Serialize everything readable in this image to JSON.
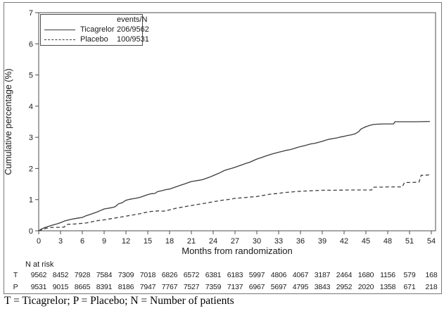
{
  "figure": {
    "y_axis_title": "Cumulative percentage (%)",
    "x_axis_title": "Months from randomization",
    "legend": {
      "header": "events/N",
      "rows": [
        {
          "name": "Ticagrelor",
          "events_n": "206/9562",
          "line": "solid"
        },
        {
          "name": "Placebo",
          "events_n": "100/9531",
          "line": "dashed"
        }
      ]
    },
    "risk_table": {
      "title": "N at risk",
      "rows": [
        {
          "label": "T",
          "counts": [
            9562,
            8452,
            7928,
            7584,
            7309,
            7018,
            6826,
            6572,
            6381,
            6183,
            5997,
            4806,
            4067,
            3187,
            2464,
            1680,
            1156,
            579,
            168
          ]
        },
        {
          "label": "P",
          "counts": [
            9531,
            9015,
            8665,
            8391,
            8186,
            7947,
            7767,
            7527,
            7359,
            7137,
            6967,
            5697,
            4795,
            3843,
            2952,
            2020,
            1358,
            671,
            218
          ]
        }
      ]
    },
    "footnote": "T = Ticagrelor; P = Placebo; N = Number of patients"
  },
  "chart_data": {
    "type": "line",
    "subtype": "kaplan-meier-cumulative-incidence",
    "title": "",
    "xlabel": "Months from randomization",
    "ylabel": "Cumulative percentage (%)",
    "xlim": [
      0,
      54
    ],
    "ylim": [
      0,
      7
    ],
    "xticks": [
      0,
      3,
      6,
      9,
      12,
      15,
      18,
      21,
      24,
      27,
      30,
      33,
      36,
      39,
      42,
      45,
      48,
      51,
      54
    ],
    "yticks": [
      0,
      1,
      2,
      3,
      4,
      5,
      6,
      7
    ],
    "grid": false,
    "legend_position": "top-left",
    "series": [
      {
        "name": "Ticagrelor",
        "events_n": "206/9562",
        "line_style": "solid",
        "color": "#3c3c3c",
        "points": [
          [
            0,
            0
          ],
          [
            0.4,
            0.06
          ],
          [
            0.8,
            0.1
          ],
          [
            1.2,
            0.13
          ],
          [
            1.6,
            0.16
          ],
          [
            2,
            0.19
          ],
          [
            2.5,
            0.22
          ],
          [
            3,
            0.26
          ],
          [
            3.5,
            0.31
          ],
          [
            4,
            0.34
          ],
          [
            4.5,
            0.37
          ],
          [
            5,
            0.39
          ],
          [
            5.5,
            0.41
          ],
          [
            6,
            0.43
          ],
          [
            6.5,
            0.48
          ],
          [
            7,
            0.52
          ],
          [
            7.5,
            0.56
          ],
          [
            8,
            0.6
          ],
          [
            8.5,
            0.65
          ],
          [
            9,
            0.7
          ],
          [
            9.5,
            0.72
          ],
          [
            10,
            0.74
          ],
          [
            10.5,
            0.77
          ],
          [
            10.8,
            0.83
          ],
          [
            11,
            0.87
          ],
          [
            11.5,
            0.9
          ],
          [
            11.8,
            0.95
          ],
          [
            12,
            0.98
          ],
          [
            12.5,
            1.01
          ],
          [
            13,
            1.03
          ],
          [
            13.5,
            1.05
          ],
          [
            14,
            1.08
          ],
          [
            14.5,
            1.12
          ],
          [
            15,
            1.16
          ],
          [
            15.5,
            1.19
          ],
          [
            16,
            1.2
          ],
          [
            16.3,
            1.25
          ],
          [
            16.6,
            1.27
          ],
          [
            17,
            1.29
          ],
          [
            17.5,
            1.32
          ],
          [
            18,
            1.34
          ],
          [
            18.5,
            1.38
          ],
          [
            19,
            1.42
          ],
          [
            19.5,
            1.46
          ],
          [
            20,
            1.5
          ],
          [
            20.5,
            1.54
          ],
          [
            21,
            1.58
          ],
          [
            21.5,
            1.6
          ],
          [
            22,
            1.62
          ],
          [
            22.5,
            1.64
          ],
          [
            23,
            1.68
          ],
          [
            23.5,
            1.72
          ],
          [
            24,
            1.77
          ],
          [
            24.5,
            1.82
          ],
          [
            25,
            1.87
          ],
          [
            25.5,
            1.93
          ],
          [
            26,
            1.97
          ],
          [
            26.5,
            2.0
          ],
          [
            27,
            2.04
          ],
          [
            27.5,
            2.08
          ],
          [
            28,
            2.12
          ],
          [
            28.5,
            2.16
          ],
          [
            29,
            2.2
          ],
          [
            29.5,
            2.25
          ],
          [
            30,
            2.3
          ],
          [
            30.5,
            2.34
          ],
          [
            31,
            2.38
          ],
          [
            31.5,
            2.42
          ],
          [
            32,
            2.46
          ],
          [
            32.5,
            2.49
          ],
          [
            33,
            2.52
          ],
          [
            33.5,
            2.55
          ],
          [
            34,
            2.58
          ],
          [
            34.5,
            2.6
          ],
          [
            35,
            2.63
          ],
          [
            35.5,
            2.67
          ],
          [
            36,
            2.7
          ],
          [
            36.5,
            2.73
          ],
          [
            37,
            2.76
          ],
          [
            37.5,
            2.79
          ],
          [
            38,
            2.81
          ],
          [
            38.5,
            2.84
          ],
          [
            39,
            2.87
          ],
          [
            39.5,
            2.91
          ],
          [
            40,
            2.94
          ],
          [
            40.5,
            2.96
          ],
          [
            41,
            2.98
          ],
          [
            41.5,
            3.01
          ],
          [
            42,
            3.03
          ],
          [
            42.5,
            3.06
          ],
          [
            43,
            3.08
          ],
          [
            43.5,
            3.11
          ],
          [
            44,
            3.18
          ],
          [
            44.3,
            3.26
          ],
          [
            44.6,
            3.3
          ],
          [
            45,
            3.34
          ],
          [
            45.5,
            3.38
          ],
          [
            46,
            3.41
          ],
          [
            46.5,
            3.42
          ],
          [
            47.5,
            3.43
          ],
          [
            48.8,
            3.43
          ],
          [
            49,
            3.5
          ],
          [
            50,
            3.5
          ],
          [
            52,
            3.5
          ],
          [
            53.8,
            3.51
          ]
        ]
      },
      {
        "name": "Placebo",
        "events_n": "100/9531",
        "line_style": "dashed",
        "color": "#3c3c3c",
        "points": [
          [
            0,
            0
          ],
          [
            0.5,
            0.04
          ],
          [
            1,
            0.08
          ],
          [
            1.5,
            0.1
          ],
          [
            2,
            0.11
          ],
          [
            3,
            0.11
          ],
          [
            3.5,
            0.12
          ],
          [
            3.8,
            0.2
          ],
          [
            4.2,
            0.21
          ],
          [
            5,
            0.22
          ],
          [
            6,
            0.24
          ],
          [
            6.5,
            0.25
          ],
          [
            7,
            0.27
          ],
          [
            7.5,
            0.3
          ],
          [
            8,
            0.32
          ],
          [
            8.5,
            0.34
          ],
          [
            9,
            0.35
          ],
          [
            9.5,
            0.37
          ],
          [
            10,
            0.39
          ],
          [
            10.5,
            0.41
          ],
          [
            11,
            0.43
          ],
          [
            11.5,
            0.45
          ],
          [
            12,
            0.47
          ],
          [
            12.5,
            0.49
          ],
          [
            13,
            0.51
          ],
          [
            13.5,
            0.53
          ],
          [
            14,
            0.55
          ],
          [
            14.5,
            0.58
          ],
          [
            15,
            0.6
          ],
          [
            15.5,
            0.62
          ],
          [
            16,
            0.63
          ],
          [
            16.5,
            0.64
          ],
          [
            17,
            0.63
          ],
          [
            17.5,
            0.64
          ],
          [
            18,
            0.67
          ],
          [
            18.5,
            0.7
          ],
          [
            19,
            0.73
          ],
          [
            19.5,
            0.75
          ],
          [
            20,
            0.77
          ],
          [
            20.5,
            0.79
          ],
          [
            21,
            0.81
          ],
          [
            21.5,
            0.83
          ],
          [
            22,
            0.85
          ],
          [
            22.5,
            0.87
          ],
          [
            23,
            0.89
          ],
          [
            23.5,
            0.91
          ],
          [
            24,
            0.93
          ],
          [
            24.5,
            0.95
          ],
          [
            25,
            0.97
          ],
          [
            25.5,
            0.99
          ],
          [
            26,
            1.0
          ],
          [
            26.5,
            1.02
          ],
          [
            27,
            1.04
          ],
          [
            27.5,
            1.05
          ],
          [
            28,
            1.06
          ],
          [
            28.5,
            1.07
          ],
          [
            29,
            1.08
          ],
          [
            29.5,
            1.09
          ],
          [
            30,
            1.1
          ],
          [
            30.5,
            1.12
          ],
          [
            31,
            1.14
          ],
          [
            31.5,
            1.16
          ],
          [
            32,
            1.18
          ],
          [
            32.5,
            1.19
          ],
          [
            33,
            1.2
          ],
          [
            33.5,
            1.22
          ],
          [
            34,
            1.23
          ],
          [
            34.5,
            1.24
          ],
          [
            35,
            1.25
          ],
          [
            35.5,
            1.26
          ],
          [
            36,
            1.27
          ],
          [
            37,
            1.28
          ],
          [
            38,
            1.29
          ],
          [
            39,
            1.3
          ],
          [
            41,
            1.3
          ],
          [
            42.5,
            1.31
          ],
          [
            45.8,
            1.31
          ],
          [
            46,
            1.4
          ],
          [
            47,
            1.4
          ],
          [
            48,
            1.41
          ],
          [
            50,
            1.41
          ],
          [
            50.3,
            1.55
          ],
          [
            51,
            1.55
          ],
          [
            52.3,
            1.56
          ],
          [
            52.6,
            1.78
          ],
          [
            53,
            1.78
          ],
          [
            53.5,
            1.79
          ],
          [
            53.8,
            1.8
          ]
        ]
      }
    ],
    "values_at_ticks": {
      "months": [
        0,
        3,
        6,
        9,
        12,
        15,
        18,
        21,
        24,
        27,
        30,
        33,
        36,
        39,
        42,
        45,
        48,
        51,
        54
      ],
      "ticagrelor": [
        0,
        0.26,
        0.43,
        0.7,
        0.98,
        1.16,
        1.34,
        1.58,
        1.77,
        2.04,
        2.3,
        2.52,
        2.7,
        2.87,
        3.03,
        3.34,
        3.43,
        3.5,
        3.51
      ],
      "placebo": [
        0,
        0.11,
        0.24,
        0.35,
        0.47,
        0.6,
        0.67,
        0.81,
        0.93,
        1.04,
        1.1,
        1.2,
        1.27,
        1.3,
        1.31,
        1.31,
        1.41,
        1.55,
        1.8
      ]
    },
    "n_at_risk": {
      "months": [
        0,
        3,
        6,
        9,
        12,
        15,
        18,
        21,
        24,
        27,
        30,
        33,
        36,
        39,
        42,
        45,
        48,
        51,
        54
      ],
      "ticagrelor": [
        9562,
        8452,
        7928,
        7584,
        7309,
        7018,
        6826,
        6572,
        6381,
        6183,
        5997,
        4806,
        4067,
        3187,
        2464,
        1680,
        1156,
        579,
        168
      ],
      "placebo": [
        9531,
        9015,
        8665,
        8391,
        8186,
        7947,
        7767,
        7527,
        7359,
        7137,
        6967,
        5697,
        4795,
        3843,
        2952,
        2020,
        1358,
        671,
        218
      ]
    }
  },
  "colors": {
    "curve": "#3c3c3c",
    "frame": "#4d4d4d",
    "figure_border": "#787878",
    "text": "#1a1a1a",
    "background": "#ffffff"
  }
}
